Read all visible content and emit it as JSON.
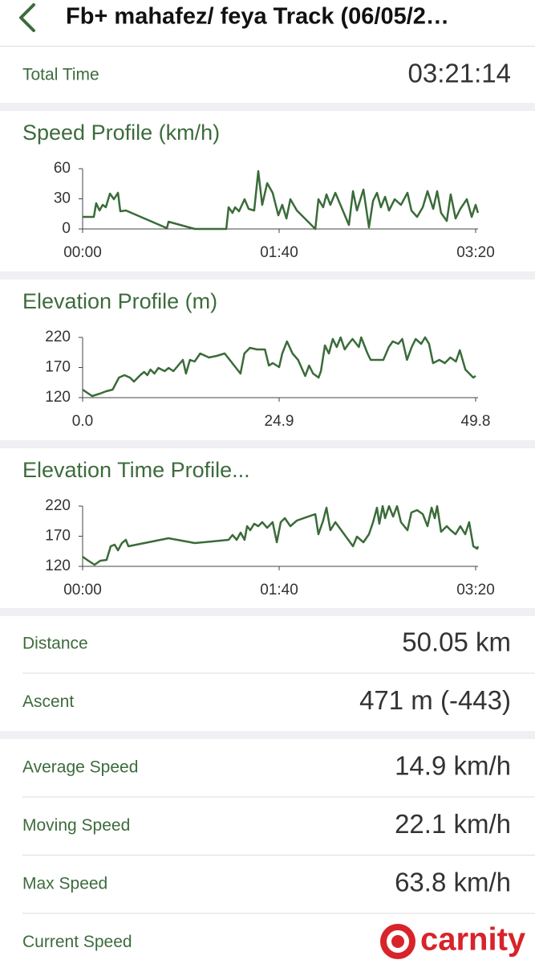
{
  "header": {
    "title": "Fb+ mahafez/ feya Track (06/05/2…"
  },
  "total_time": {
    "label": "Total Time",
    "value": "03:21:14"
  },
  "chart_data": [
    {
      "type": "line",
      "title": "Speed Profile (km/h)",
      "color": "#3a6b3a",
      "xlim": [
        0,
        200
      ],
      "xticks": [
        {
          "value": 0,
          "label": "00:00"
        },
        {
          "value": 100,
          "label": "01:40"
        },
        {
          "value": 200,
          "label": "03:20"
        }
      ],
      "ylim": [
        0,
        60
      ],
      "yticks": [
        0,
        30,
        60
      ],
      "x": [
        0,
        5.7,
        6.9,
        8.6,
        10.2,
        11.8,
        13.9,
        15.9,
        18.0,
        19.2,
        22.0,
        42.9,
        43.7,
        57.1,
        73.1,
        74.3,
        76.3,
        77.6,
        79.6,
        82.4,
        84.5,
        87.3,
        89.4,
        91.4,
        93.9,
        96.7,
        99.6,
        101.6,
        103.7,
        105.7,
        109.0,
        118.4,
        120.0,
        122.4,
        124.1,
        126.1,
        128.6,
        135.5,
        137.6,
        139.6,
        142.9,
        145.7,
        147.8,
        149.8,
        151.8,
        153.9,
        155.9,
        158.8,
        162.0,
        165.3,
        167.3,
        170.2,
        173.1,
        175.5,
        178.4,
        180.4,
        182.4,
        185.3,
        187.3,
        189.8,
        192.2,
        195.5,
        198.0,
        200.0,
        201.2
      ],
      "values": [
        12,
        12,
        25.6,
        18.4,
        24,
        21.6,
        35.2,
        29.6,
        36,
        17.6,
        18.4,
        0.8,
        7.2,
        0,
        0,
        21.6,
        16,
        21.6,
        17.6,
        29.6,
        20,
        18.4,
        57.6,
        24,
        45.6,
        36,
        13.6,
        24,
        10.4,
        29.6,
        18.4,
        0,
        29.6,
        21.6,
        34.4,
        24,
        36,
        4,
        37.6,
        18.4,
        39.2,
        1.6,
        28,
        36,
        21.6,
        32,
        18.4,
        29.6,
        24,
        36,
        18.4,
        12,
        21.6,
        37.6,
        20,
        37.6,
        16,
        8,
        34.4,
        10.4,
        20,
        29.6,
        12,
        24,
        16
      ]
    },
    {
      "type": "line",
      "title": "Elevation Profile (m)",
      "color": "#3a6b3a",
      "xlim": [
        0,
        49.8
      ],
      "xticks": [
        {
          "value": 0,
          "label": "0.0"
        },
        24.9,
        49.8
      ],
      "ylim": [
        120,
        220
      ],
      "yticks": [
        120,
        170,
        220
      ],
      "x": [
        0,
        1.2,
        2.2,
        3.0,
        3.8,
        4.6,
        5.3,
        6.0,
        6.5,
        7.3,
        7.8,
        8.2,
        8.6,
        9.1,
        9.6,
        10.4,
        10.9,
        11.5,
        12.1,
        12.7,
        13.1,
        13.6,
        14.2,
        14.9,
        16.0,
        17.0,
        18.0,
        18.8,
        20.0,
        20.5,
        21.2,
        22.1,
        23.1,
        23.6,
        24.1,
        24.9,
        25.3,
        25.9,
        26.6,
        27.3,
        28.2,
        28.7,
        29.2,
        29.9,
        30.2,
        30.7,
        31.2,
        31.7,
        32.2,
        32.7,
        33.2,
        33.7,
        34.2,
        35.0,
        35.3,
        36.1,
        36.5,
        37.3,
        38.1,
        38.8,
        39.3,
        40.0,
        40.5,
        41.1,
        41.7,
        42.2,
        42.9,
        43.4,
        43.9,
        44.4,
        45.2,
        45.9,
        46.6,
        47.3,
        47.8,
        48.5,
        49.0,
        49.5,
        49.8
      ],
      "values": [
        133.3,
        122.7,
        126.7,
        130.7,
        133.3,
        153.3,
        157.3,
        153.3,
        146.7,
        157.3,
        162.7,
        157.3,
        166.7,
        160,
        169.3,
        164,
        169.3,
        164,
        173.3,
        182.7,
        160,
        182.7,
        180,
        193.3,
        186.7,
        189.3,
        193.3,
        180,
        160,
        193.3,
        202.7,
        200,
        200,
        173.3,
        177.3,
        170.7,
        193.3,
        213.3,
        193.3,
        182.7,
        156,
        173.3,
        160,
        153.3,
        164,
        206.7,
        193.3,
        217.3,
        204,
        220,
        200,
        209.3,
        217.3,
        204,
        220,
        193.3,
        182.7,
        182.7,
        182.7,
        204,
        213.3,
        209.3,
        217.3,
        182.7,
        204,
        217.3,
        209.3,
        220,
        209.3,
        177.3,
        182.7,
        177.3,
        186.7,
        180,
        198.7,
        166.7,
        160,
        153.3,
        156
      ]
    },
    {
      "type": "line",
      "title": "Elevation Time Profile...",
      "color": "#3a6b3a",
      "xlim": [
        0,
        200
      ],
      "xticks": [
        {
          "value": 0,
          "label": "00:00"
        },
        {
          "value": 100,
          "label": "01:40"
        },
        {
          "value": 200,
          "label": "03:20"
        }
      ],
      "ylim": [
        120,
        220
      ],
      "yticks": [
        120,
        170,
        220
      ],
      "x": [
        0,
        2.9,
        6.1,
        9.0,
        12.2,
        14.3,
        16.3,
        18.0,
        20.0,
        22.0,
        23.3,
        43.7,
        57.1,
        74.3,
        76.3,
        78.4,
        80.4,
        82.4,
        83.7,
        85.3,
        87.3,
        89.4,
        91.4,
        93.9,
        96.7,
        98.8,
        100.8,
        102.9,
        105.7,
        109.0,
        118.4,
        120.0,
        122.4,
        124.1,
        126.1,
        128.6,
        137.6,
        139.6,
        142.9,
        145.7,
        147.8,
        149.8,
        151.0,
        152.7,
        153.9,
        155.9,
        158.0,
        160.0,
        162.0,
        165.3,
        167.3,
        170.2,
        173.1,
        175.5,
        177.6,
        179.2,
        180.4,
        182.4,
        185.3,
        187.3,
        189.8,
        192.2,
        194.7,
        196.7,
        198.8,
        200.8,
        201.2
      ],
      "values": [
        136,
        129.3,
        122.7,
        129.3,
        130.7,
        153.3,
        156,
        146.7,
        158.7,
        164,
        153.3,
        166.7,
        158.7,
        164,
        172,
        164,
        176,
        164,
        186.7,
        180,
        190.7,
        186.7,
        193.3,
        184,
        193.3,
        160,
        193.3,
        200,
        186.7,
        196,
        206.7,
        173.3,
        196,
        217.3,
        180,
        193.3,
        153.3,
        169.3,
        160,
        173.3,
        193.3,
        217.3,
        190.7,
        220,
        200,
        220,
        202.7,
        220,
        193.3,
        180,
        209.3,
        213.3,
        206.7,
        186.7,
        217.3,
        200,
        220,
        177.3,
        186.7,
        180,
        173.3,
        186.7,
        173.3,
        193.3,
        153.3,
        149.3,
        153.3
      ]
    }
  ],
  "distance_group": [
    {
      "label": "Distance",
      "value": "50.05 km"
    },
    {
      "label": "Ascent",
      "value": "471 m (-443)"
    }
  ],
  "speed_group": [
    {
      "label": "Average Speed",
      "value": "14.9 km/h"
    },
    {
      "label": "Moving Speed",
      "value": "22.1 km/h"
    },
    {
      "label": "Max Speed",
      "value": "63.8 km/h"
    },
    {
      "label": "Current Speed"
    }
  ],
  "watermark": {
    "text": "carnity"
  }
}
